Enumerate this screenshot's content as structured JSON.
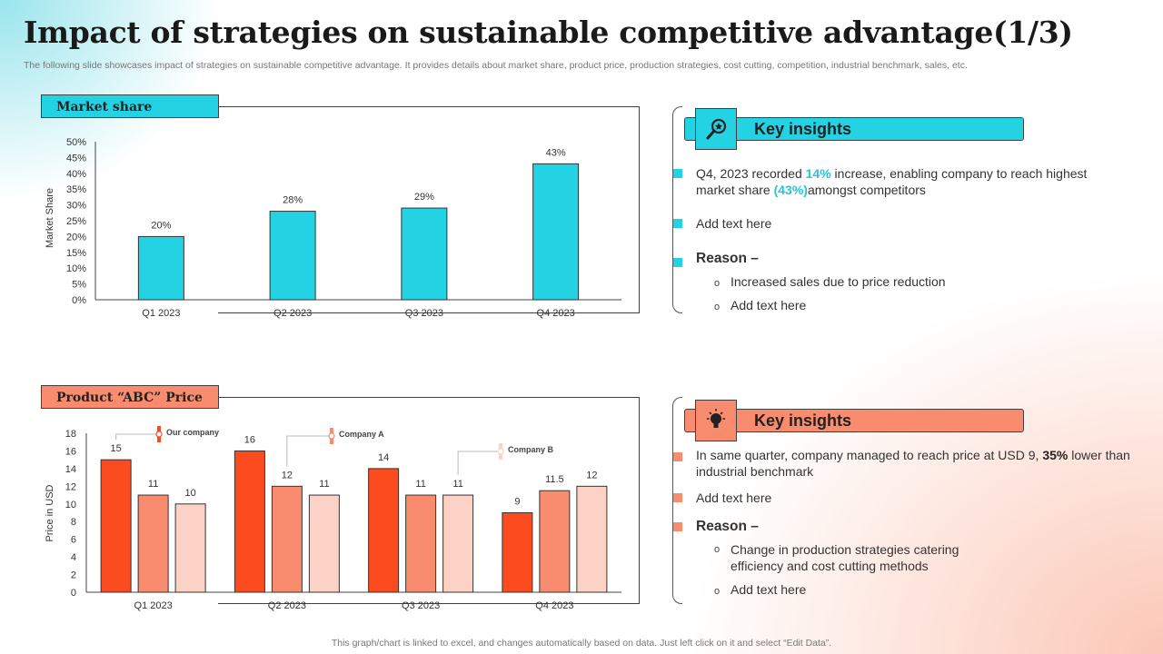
{
  "page": {
    "title": "Impact of strategies on sustainable competitive advantage(1/3)",
    "subtitle": "The following slide showcases impact of strategies on sustainable competitive advantage. It provides details about market share, product price, production strategies, cost cutting, competition, industrial benchmark, sales, etc.",
    "footer": "This graph/chart is linked to excel,  and changes automatically based on data. Just left click on it and select “Edit Data”."
  },
  "colors": {
    "teal": "#23d3e3",
    "salmon": "#f98b6e",
    "series": [
      "#fc4b1f",
      "#f98b6e",
      "#fcd2c6"
    ]
  },
  "chart_data": [
    {
      "type": "bar",
      "section_label": "Market share",
      "categories": [
        "Q1 2023",
        "Q2 2023",
        "Q3 2023",
        "Q4 2023"
      ],
      "values": [
        20,
        28,
        29,
        43
      ],
      "value_labels": [
        "20%",
        "28%",
        "29%",
        "43%"
      ],
      "ylabel": "Market Share",
      "ylim": [
        0,
        50
      ],
      "yticks": [
        0,
        5,
        10,
        15,
        20,
        25,
        30,
        35,
        40,
        45,
        50
      ],
      "ytick_labels": [
        "0%",
        "5%",
        "10%",
        "15%",
        "20%",
        "25%",
        "30%",
        "35%",
        "40%",
        "45%",
        "50%"
      ],
      "grid": false
    },
    {
      "type": "bar",
      "section_label": "Product “ABC” Price",
      "categories": [
        "Q1 2023",
        "Q2 2023",
        "Q3 2023",
        "Q4 2023"
      ],
      "series": [
        {
          "name": "Our company",
          "values": [
            15,
            16,
            14,
            9
          ]
        },
        {
          "name": "Company A",
          "values": [
            11,
            12,
            11,
            11.5
          ]
        },
        {
          "name": "Company B",
          "values": [
            10,
            11,
            11,
            12
          ]
        }
      ],
      "value_labels": [
        [
          "15",
          "16",
          "14",
          "9"
        ],
        [
          "11",
          "12",
          "11",
          "11.5"
        ],
        [
          "10",
          "11",
          "11",
          "12"
        ]
      ],
      "ylabel": "Price in USD",
      "ylim": [
        0,
        18
      ],
      "yticks": [
        0,
        2,
        4,
        6,
        8,
        10,
        12,
        14,
        16,
        18
      ],
      "ytick_labels": [
        "0",
        "2",
        "4",
        "6",
        "8",
        "10",
        "12",
        "14",
        "16",
        "18"
      ],
      "grid": false
    }
  ],
  "insights_top": {
    "heading": "Key insights",
    "icon": "magnifier-icon",
    "point1": {
      "a": "Q4, 2023 recorded ",
      "b": "14%",
      "c": " increase, enabling company to reach highest market share ",
      "d": "(43%)",
      "e": "amongst competitors"
    },
    "point2": "Add text here",
    "reason_label": "Reason –",
    "subpoints": [
      "Increased sales due to price reduction",
      "Add text here"
    ],
    "bullet_glyph": "o"
  },
  "insights_bottom": {
    "heading": "Key insights",
    "icon": "lightbulb-icon",
    "point1": {
      "a": "In same quarter, company managed to reach price at USD 9, ",
      "b": "35%",
      "c": " lower than industrial benchmark"
    },
    "point2": "Add text here",
    "reason_label": "Reason –",
    "subpoints": [
      "Change in production strategies catering efficiency and cost cutting methods",
      "Add text here"
    ],
    "bullet_glyph": "o"
  }
}
